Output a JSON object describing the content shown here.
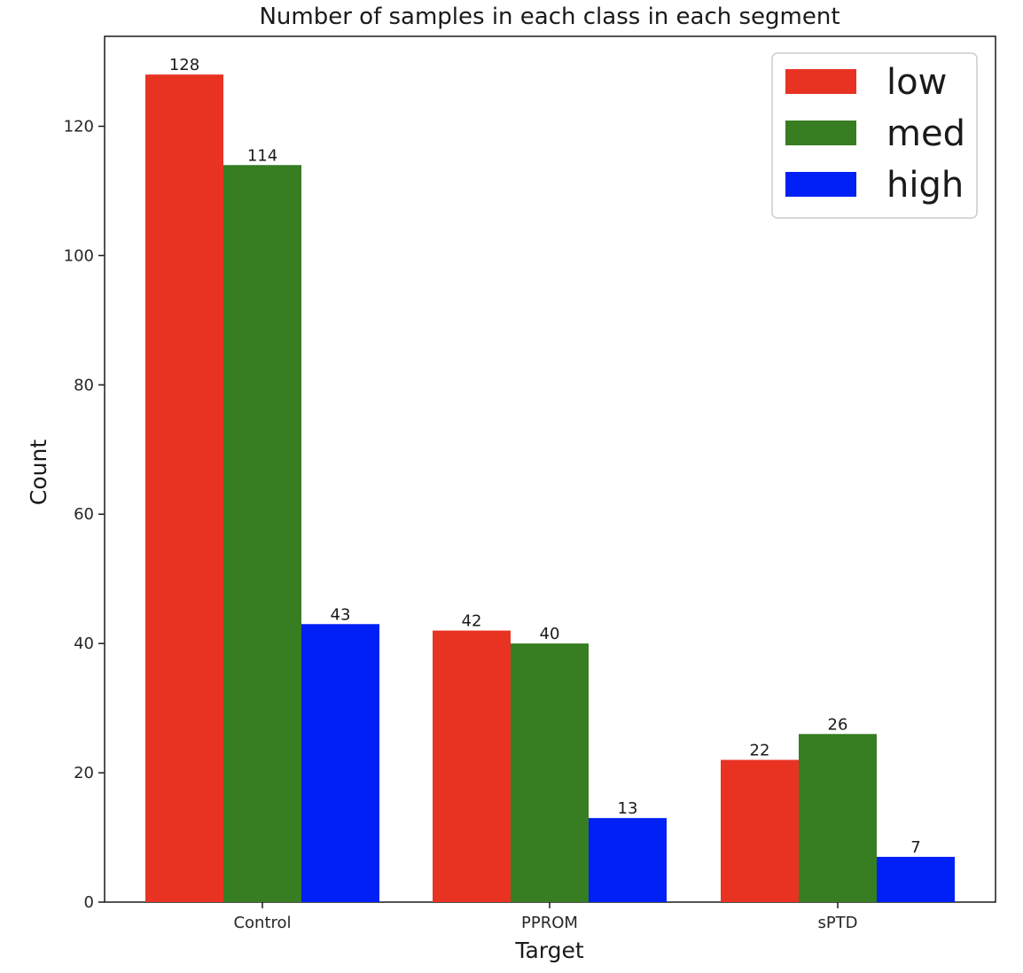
{
  "chart_data": {
    "type": "bar",
    "title": "Number of samples in each class in each segment",
    "xlabel": "Target",
    "ylabel": "Count",
    "categories": [
      "Control",
      "PPROM",
      "sPTD"
    ],
    "series": [
      {
        "name": "low",
        "color": "#e83323",
        "values": [
          128,
          42,
          22
        ]
      },
      {
        "name": "med",
        "color": "#377d22",
        "values": [
          114,
          40,
          26
        ]
      },
      {
        "name": "high",
        "color": "#0020f5",
        "values": [
          43,
          13,
          7
        ]
      }
    ],
    "ylim": [
      0,
      134
    ],
    "yticks": [
      0,
      20,
      40,
      60,
      80,
      100,
      120
    ],
    "legend_position": "top-right",
    "grid": false
  }
}
